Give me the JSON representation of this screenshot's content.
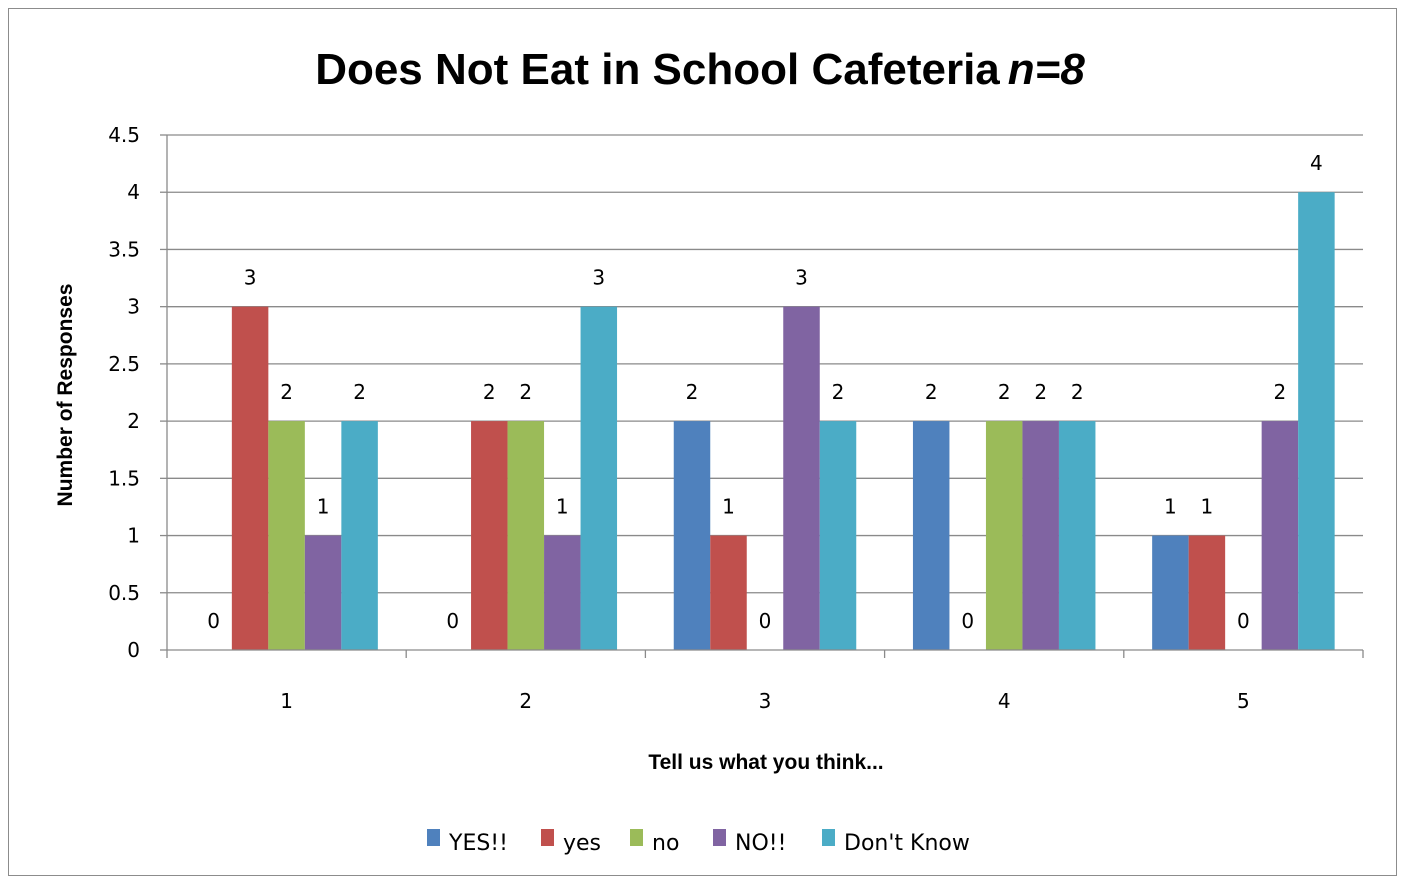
{
  "chart_data": {
    "type": "bar",
    "title": "Does Not Eat in School Cafeteria",
    "title_suffix": "n=8",
    "xlabel": "Tell us what you think...",
    "ylabel": "Number of Responses",
    "categories": [
      "1",
      "2",
      "3",
      "4",
      "5"
    ],
    "series": [
      {
        "name": "YES!!",
        "color": "#4f81bd",
        "values": [
          0,
          0,
          2,
          2,
          1
        ]
      },
      {
        "name": "yes",
        "color": "#c0504d",
        "values": [
          3,
          2,
          1,
          0,
          1
        ]
      },
      {
        "name": "no",
        "color": "#9bbb59",
        "values": [
          2,
          2,
          0,
          2,
          0
        ]
      },
      {
        "name": "NO!!",
        "color": "#8064a2",
        "values": [
          1,
          1,
          3,
          2,
          2
        ]
      },
      {
        "name": "Don't Know",
        "color": "#4bacc6",
        "values": [
          2,
          3,
          2,
          2,
          4
        ]
      }
    ],
    "ylim": [
      0,
      4.5
    ],
    "yticks": [
      "0",
      "0.5",
      "1",
      "1.5",
      "2",
      "2.5",
      "3",
      "3.5",
      "4",
      "4.5"
    ],
    "data_labels": [
      {
        "category": "1",
        "series": "YES!!",
        "text": "0"
      },
      {
        "category": "1",
        "series": "yes",
        "text": "3"
      },
      {
        "category": "1",
        "series": "no",
        "text": "2"
      },
      {
        "category": "1",
        "series": "NO!!",
        "text": "1"
      },
      {
        "category": "1",
        "series": "Don't Know",
        "text": "2"
      },
      {
        "category": "2",
        "series": "YES!!",
        "text": "0"
      },
      {
        "category": "2",
        "series": "yes",
        "text": "2"
      },
      {
        "category": "2",
        "series": "no",
        "text": "2"
      },
      {
        "category": "2",
        "series": "NO!!",
        "text": "1"
      },
      {
        "category": "2",
        "series": "Don't Know",
        "text": "3"
      },
      {
        "category": "3",
        "series": "YES!!",
        "text": "2"
      },
      {
        "category": "3",
        "series": "yes",
        "text": "1"
      },
      {
        "category": "3",
        "series": "no",
        "text": "0"
      },
      {
        "category": "3",
        "series": "NO!!",
        "text": "3"
      },
      {
        "category": "3",
        "series": "Don't Know",
        "text": "2"
      },
      {
        "category": "4",
        "series": "YES!!",
        "text": "2"
      },
      {
        "category": "4",
        "series": "yes",
        "text": "0"
      },
      {
        "category": "4",
        "series": "no",
        "text": "2"
      },
      {
        "category": "4",
        "series": "NO!!",
        "text": "2"
      },
      {
        "category": "4",
        "series": "Don't Know",
        "text": "2"
      },
      {
        "category": "5",
        "series": "YES!!",
        "text": "1"
      },
      {
        "category": "5",
        "series": "yes",
        "text": "1"
      },
      {
        "category": "5",
        "series": "no",
        "text": "0"
      },
      {
        "category": "5",
        "series": "NO!!",
        "text": "2"
      },
      {
        "category": "5",
        "series": "Don't Know",
        "text": "4"
      }
    ],
    "grid": true,
    "legend_position": "bottom"
  }
}
